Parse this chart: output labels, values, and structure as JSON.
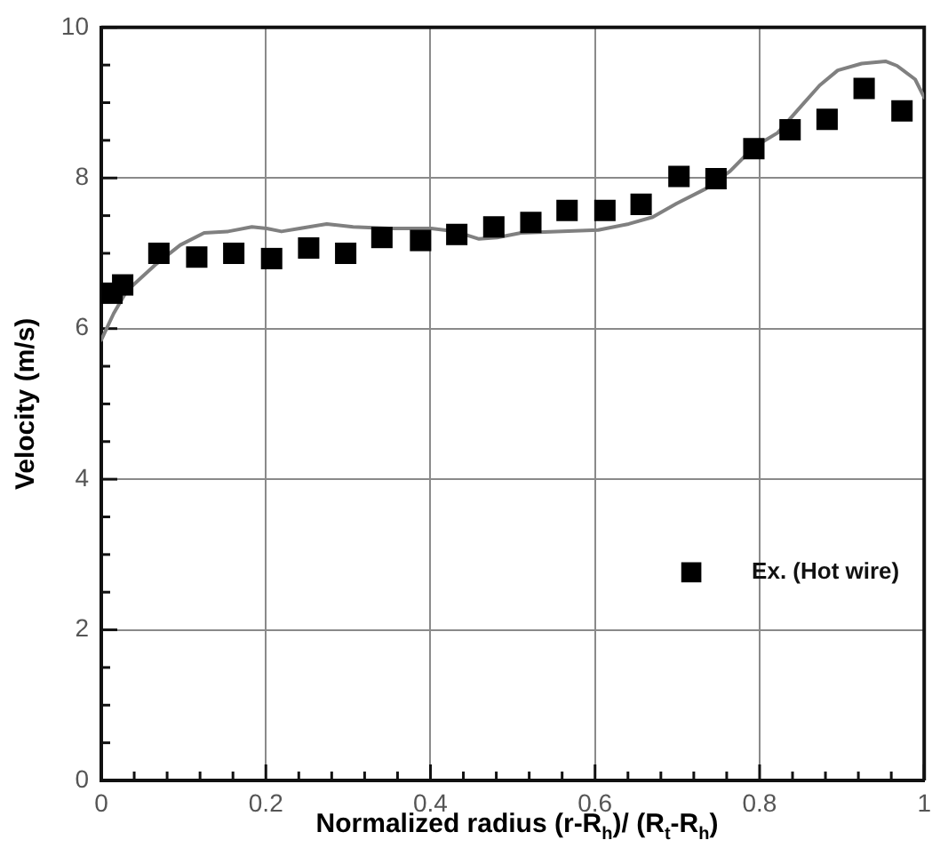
{
  "chart_data": {
    "type": "scatter",
    "xlabel": "Normalized radius (r-R$_{h}$)/ (R$_{t}$-R$_{h}$)",
    "ylabel": "Velocity (m/s)",
    "xlim": [
      0,
      1
    ],
    "ylim": [
      0,
      10
    ],
    "xticks": [
      0,
      {
        "value": 0.04,
        "label": null
      },
      {
        "value": 0.08,
        "label": null
      },
      {
        "value": 0.12,
        "label": null
      },
      {
        "value": 0.16,
        "label": null
      },
      0.2,
      {
        "value": 0.24,
        "label": null
      },
      {
        "value": 0.28,
        "label": null
      },
      {
        "value": 0.32,
        "label": null
      },
      {
        "value": 0.36,
        "label": null
      },
      0.4,
      {
        "value": 0.44,
        "label": null
      },
      {
        "value": 0.48,
        "label": null
      },
      {
        "value": 0.52,
        "label": null
      },
      {
        "value": 0.56,
        "label": null
      },
      0.6,
      {
        "value": 0.64,
        "label": null
      },
      {
        "value": 0.68,
        "label": null
      },
      {
        "value": 0.72,
        "label": null
      },
      {
        "value": 0.76,
        "label": null
      },
      0.8,
      {
        "value": 0.84,
        "label": null
      },
      {
        "value": 0.88,
        "label": null
      },
      {
        "value": 0.92,
        "label": null
      },
      {
        "value": 0.96,
        "label": null
      },
      1
    ],
    "yticks": [
      0,
      {
        "value": 0.5,
        "label": null
      },
      {
        "value": 1,
        "label": null
      },
      {
        "value": 1.5,
        "label": null
      },
      2,
      {
        "value": 2.5,
        "label": null
      },
      {
        "value": 3,
        "label": null
      },
      {
        "value": 3.5,
        "label": null
      },
      4,
      {
        "value": 4.5,
        "label": null
      },
      {
        "value": 5,
        "label": null
      },
      {
        "value": 5.5,
        "label": null
      },
      6,
      {
        "value": 6.5,
        "label": null
      },
      {
        "value": 7,
        "label": null
      },
      {
        "value": 7.5,
        "label": null
      },
      8,
      {
        "value": 8.5,
        "label": null
      },
      {
        "value": 9,
        "label": null
      },
      {
        "value": 9.5,
        "label": null
      },
      10
    ],
    "grid": true,
    "legend": "bottom right",
    "series": [
      {
        "name": "Ex. (Hot wire)",
        "type": "scatter",
        "marker": "square",
        "color": "#000000",
        "x": [
          0.013,
          0.026,
          0.07,
          0.116,
          0.161,
          0.207,
          0.252,
          0.297,
          0.341,
          0.388,
          0.432,
          0.477,
          0.522,
          0.566,
          0.612,
          0.656,
          0.702,
          0.747,
          0.793,
          0.837,
          0.882,
          0.927,
          0.973
        ],
        "values": [
          6.47,
          6.58,
          7.0,
          6.95,
          7.0,
          6.93,
          7.07,
          7.0,
          7.21,
          7.17,
          7.25,
          7.35,
          7.41,
          7.57,
          7.57,
          7.65,
          8.02,
          7.99,
          8.39,
          8.64,
          8.78,
          9.19,
          8.89
        ]
      },
      {
        "type": "line",
        "marker": "none",
        "color": "#808080",
        "x": [
          0,
          0.015,
          0.031,
          0.067,
          0.096,
          0.125,
          0.154,
          0.183,
          0.201,
          0.219,
          0.241,
          0.274,
          0.306,
          0.35,
          0.401,
          0.43,
          0.459,
          0.481,
          0.51,
          0.553,
          0.604,
          0.641,
          0.67,
          0.699,
          0.735,
          0.764,
          0.793,
          0.822,
          0.851,
          0.873,
          0.895,
          0.924,
          0.953,
          0.967,
          0.989,
          1
        ],
        "values": [
          5.85,
          6.2,
          6.5,
          6.86,
          7.11,
          7.27,
          7.29,
          7.35,
          7.33,
          7.29,
          7.33,
          7.39,
          7.35,
          7.33,
          7.33,
          7.29,
          7.19,
          7.21,
          7.27,
          7.29,
          7.31,
          7.39,
          7.48,
          7.66,
          7.86,
          8.09,
          8.41,
          8.6,
          8.96,
          9.23,
          9.43,
          9.52,
          9.55,
          9.49,
          9.31,
          9.07
        ]
      }
    ]
  }
}
